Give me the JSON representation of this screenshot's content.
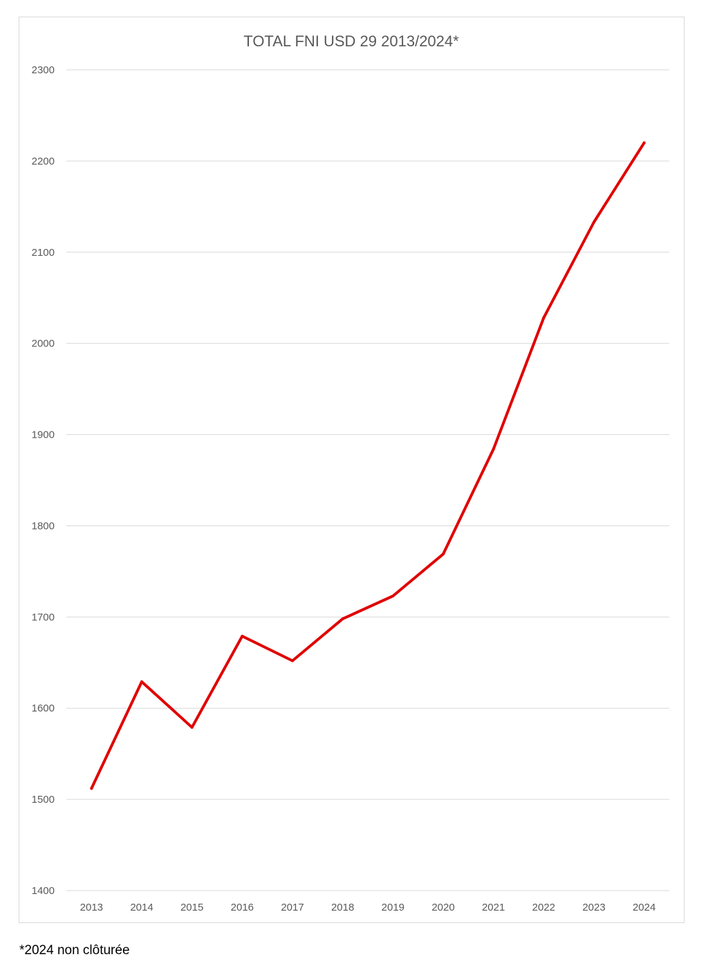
{
  "chart_data": {
    "type": "line",
    "title": "TOTAL FNI USD 29 2013/2024*",
    "xlabel": "",
    "ylabel": "",
    "categories": [
      "2013",
      "2014",
      "2015",
      "2016",
      "2017",
      "2018",
      "2019",
      "2020",
      "2021",
      "2022",
      "2023",
      "2024"
    ],
    "series": [
      {
        "values": [
          1512,
          1629,
          1579,
          1679,
          1652,
          1698,
          1723,
          1769,
          1884,
          2028,
          2133,
          2220
        ]
      }
    ],
    "ylim": [
      1400,
      2300
    ],
    "yticks": [
      "1400",
      "1500",
      "1600",
      "1700",
      "1800",
      "1900",
      "2000",
      "2100",
      "2200",
      "2300"
    ],
    "grid": true,
    "legend": "none",
    "colors": {
      "line": "#e00000",
      "grid": "#d9d9d9",
      "text": "#595959"
    }
  },
  "footnote": "*2024 non clôturée"
}
